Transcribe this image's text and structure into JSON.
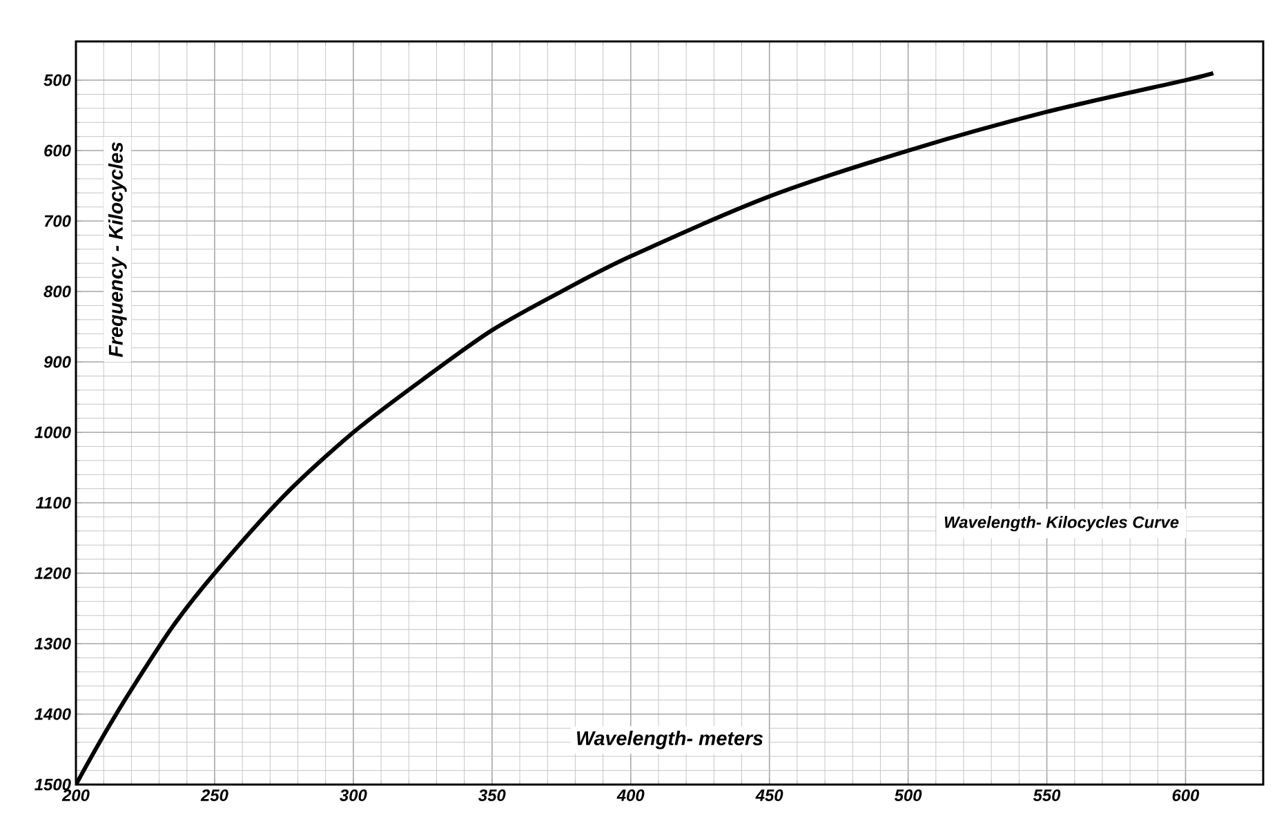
{
  "chart_data": {
    "type": "line",
    "title": "Wavelength- Kilocycles Curve",
    "xlabel": "Wavelength- meters",
    "ylabel": "Frequency - Kilocycles",
    "x": [
      200,
      210,
      220,
      235,
      250,
      275,
      300,
      325,
      350,
      375,
      400,
      450,
      500,
      550,
      600,
      610
    ],
    "series": [
      {
        "color": "#000000",
        "values": [
          1500,
          1430,
          1365,
          1275,
          1200,
          1090,
          1000,
          925,
          855,
          800,
          750,
          665,
          600,
          545,
          500,
          490
        ]
      }
    ],
    "xlim": [
      200,
      628
    ],
    "ylim": [
      1500,
      445
    ],
    "xticks": [
      200,
      250,
      300,
      350,
      400,
      450,
      500,
      550,
      600
    ],
    "yticks": [
      500,
      600,
      700,
      800,
      900,
      1000,
      1100,
      1200,
      1300,
      1400,
      1500
    ],
    "grid": true,
    "marker": "none",
    "line_style": "solid"
  }
}
